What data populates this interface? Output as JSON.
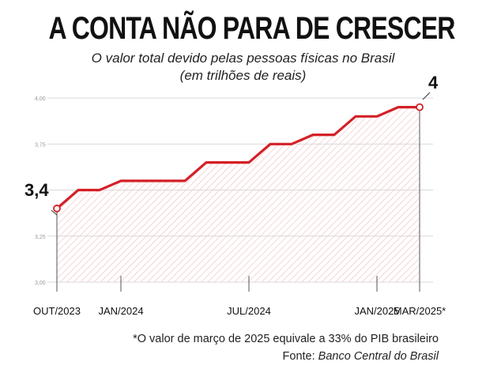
{
  "header": {
    "title": "A CONTA NÃO PARA DE CRESCER",
    "subtitle_line1": "O valor total devido pelas pessoas físicas no Brasil",
    "subtitle_line2": "(em trilhões de reais)"
  },
  "colors": {
    "line": "#d42027",
    "hatch": "#f0c4c4",
    "grid": "#d9d9d9",
    "axis": "#555555"
  },
  "chart_data": {
    "type": "line",
    "title": "",
    "xlabel": "",
    "ylabel": "",
    "ylim": [
      3.0,
      4.0
    ],
    "yticks": [
      "3,00",
      "3,25",
      "3,75",
      "4,00"
    ],
    "ytick_values": [
      3.0,
      3.25,
      3.75,
      4.0
    ],
    "gridlines": [
      3.0,
      3.25,
      3.5,
      3.75,
      4.0
    ],
    "xtick_labels": [
      "OUT/2023",
      "JAN/2024",
      "JUL/2024",
      "JAN/2025",
      "MAR/2025*"
    ],
    "xtick_index": [
      0,
      3,
      9,
      15,
      17
    ],
    "series": [
      {
        "values": [
          3.4,
          3.5,
          3.5,
          3.55,
          3.55,
          3.55,
          3.55,
          3.65,
          3.65,
          3.65,
          3.75,
          3.75,
          3.8,
          3.8,
          3.9,
          3.9,
          3.95,
          3.95
        ]
      }
    ],
    "point_labels": {
      "start": "3,4",
      "end": "4"
    },
    "grid": true,
    "hatched_area": true
  },
  "footer": {
    "note": "*O valor de março de 2025 equivale a 33% do PIB brasileiro",
    "source_prefix": "Fonte: ",
    "source_name": "Banco Central do Brasil"
  }
}
